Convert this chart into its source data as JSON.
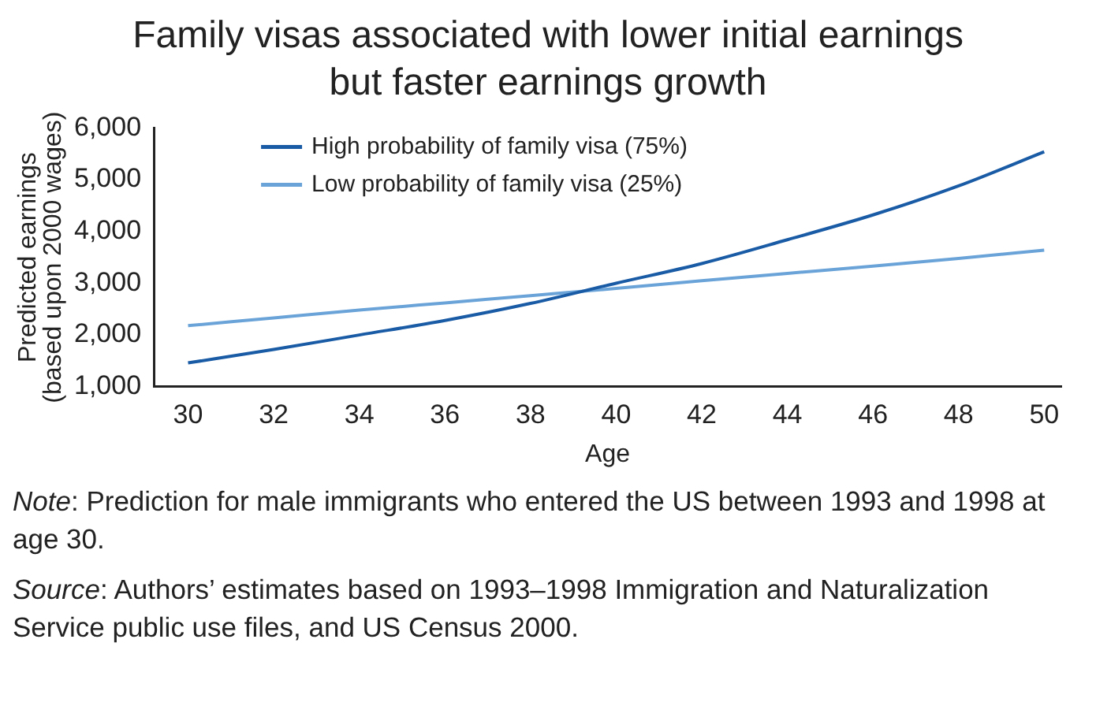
{
  "chart_data": {
    "type": "line",
    "title": "Family visas associated with lower initial earnings but faster earnings growth",
    "xlabel": "Age",
    "ylabel": "Predicted earnings\n(based upon 2000 wages)",
    "x": [
      30,
      32,
      34,
      36,
      38,
      40,
      42,
      44,
      46,
      48,
      50
    ],
    "series": [
      {
        "name": "High probability of family visa (75%)",
        "color": "#1a5ba6",
        "values": [
          1460,
          1720,
          2000,
          2280,
          2610,
          3000,
          3380,
          3840,
          4320,
          4880,
          5540
        ]
      },
      {
        "name": "Low probability of family visa (25%)",
        "color": "#6aa3d8",
        "values": [
          2180,
          2330,
          2480,
          2620,
          2760,
          2900,
          3050,
          3190,
          3330,
          3480,
          3640
        ]
      }
    ],
    "xlim": [
      29.2,
      50.4
    ],
    "xticks": [
      30,
      32,
      34,
      36,
      38,
      40,
      42,
      44,
      46,
      48,
      50
    ],
    "ylim": [
      1000,
      6000
    ],
    "yticks": [
      {
        "value": 1000,
        "label": "1,000"
      },
      {
        "value": 2000,
        "label": "2,000"
      },
      {
        "value": 3000,
        "label": "3,000"
      },
      {
        "value": 4000,
        "label": "4,000"
      },
      {
        "value": 5000,
        "label": "5,000"
      },
      {
        "value": 6000,
        "label": "6,000"
      }
    ],
    "grid": false,
    "legend": "top left",
    "marker": "none",
    "line_style": "solid",
    "annotations": [
      "Note: Prediction for male immigrants who entered the US between 1993 and 1998 at age 30.",
      "Source: Authors’ estimates based on 1993–1998 Immigration and Naturalization Service public use files, and US Census 2000."
    ]
  }
}
